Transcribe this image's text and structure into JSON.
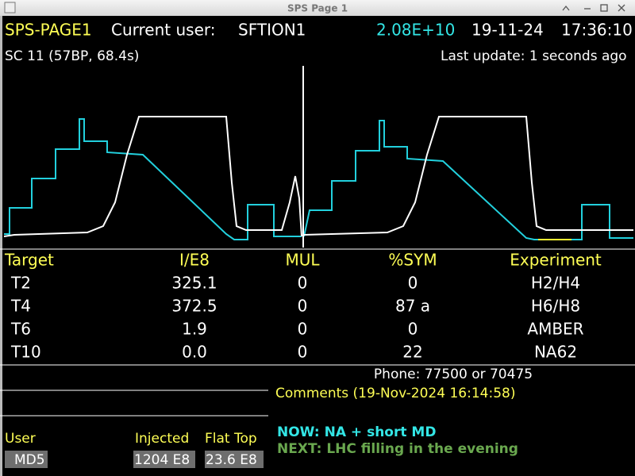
{
  "window": {
    "title": "SPS Page 1"
  },
  "header": {
    "page": "SPS-PAGE1",
    "user_label": "Current user:",
    "user": "SFTION1",
    "intensity": "2.08E+10",
    "date": "19-11-24",
    "time": "17:36:10"
  },
  "status": {
    "cycle": "SC 11 (57BP, 68.4s)",
    "last_update": "Last update: 1 seconds ago"
  },
  "table": {
    "headers": [
      "Target",
      "I/E8",
      "MUL",
      "%SYM",
      "Experiment"
    ],
    "rows": [
      [
        "T2",
        "325.1",
        "0",
        "0",
        "H2/H4"
      ],
      [
        "T4",
        "372.5",
        "0",
        "87 a",
        "H6/H8"
      ],
      [
        "T6",
        "1.9",
        "0",
        "0",
        "AMBER"
      ],
      [
        "T10",
        "0.0",
        "0",
        "22",
        "NA62"
      ]
    ]
  },
  "phone": "Phone: 77500 or 70475",
  "comments": {
    "title": "Comments (19-Nov-2024 16:14:58)",
    "now": "NOW: NA + short MD",
    "next": "NEXT: LHC filling in the evening"
  },
  "footer": {
    "user_label": "User",
    "user": "MD5",
    "injected_label": "Injected",
    "injected": "1204 E8",
    "flattop_label": "Flat Top",
    "flattop": "23.6 E8"
  }
}
